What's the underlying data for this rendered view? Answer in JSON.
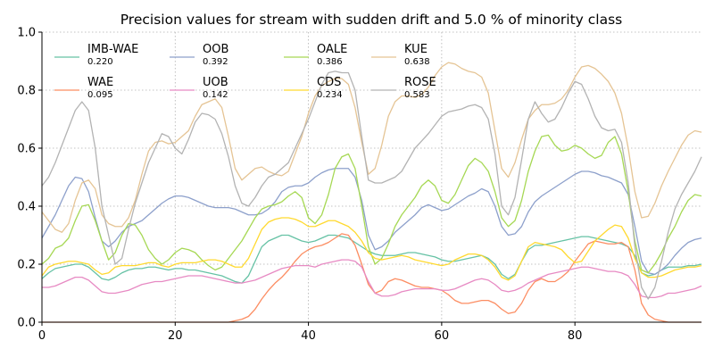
{
  "chart_data": {
    "type": "line",
    "title": "Precision values for stream with sudden drift and 5.0 % of minority class",
    "xlabel": "",
    "ylabel": "",
    "xlim": [
      0,
      99
    ],
    "ylim": [
      0,
      1.0
    ],
    "xticks": [
      "0",
      "20",
      "40",
      "60",
      "80"
    ],
    "yticks": [
      "0.0",
      "0.2",
      "0.4",
      "0.6",
      "0.8",
      "1.0"
    ],
    "grid": true,
    "legend_position": "top-left",
    "x": [
      0,
      1,
      2,
      3,
      4,
      5,
      6,
      7,
      8,
      9,
      10,
      11,
      12,
      13,
      14,
      15,
      16,
      17,
      18,
      19,
      20,
      21,
      22,
      23,
      24,
      25,
      26,
      27,
      28,
      29,
      30,
      31,
      32,
      33,
      34,
      35,
      36,
      37,
      38,
      39,
      40,
      41,
      42,
      43,
      44,
      45,
      46,
      47,
      48,
      49,
      50,
      51,
      52,
      53,
      54,
      55,
      56,
      57,
      58,
      59,
      60,
      61,
      62,
      63,
      64,
      65,
      66,
      67,
      68,
      69,
      70,
      71,
      72,
      73,
      74,
      75,
      76,
      77,
      78,
      79,
      80,
      81,
      82,
      83,
      84,
      85,
      86,
      87,
      88,
      89,
      90,
      91,
      92,
      93,
      94,
      95,
      96,
      97,
      98,
      99
    ],
    "series": [
      {
        "name": "IMB-WAE",
        "score": "0.220",
        "color": "#66c2a5",
        "values": [
          0.15,
          0.17,
          0.185,
          0.19,
          0.195,
          0.2,
          0.2,
          0.19,
          0.17,
          0.15,
          0.145,
          0.155,
          0.17,
          0.18,
          0.185,
          0.185,
          0.19,
          0.19,
          0.185,
          0.18,
          0.185,
          0.185,
          0.18,
          0.18,
          0.175,
          0.17,
          0.165,
          0.16,
          0.15,
          0.14,
          0.135,
          0.16,
          0.21,
          0.26,
          0.28,
          0.29,
          0.3,
          0.3,
          0.29,
          0.28,
          0.275,
          0.28,
          0.29,
          0.3,
          0.3,
          0.295,
          0.29,
          0.275,
          0.26,
          0.245,
          0.235,
          0.23,
          0.23,
          0.23,
          0.235,
          0.24,
          0.24,
          0.235,
          0.23,
          0.225,
          0.215,
          0.21,
          0.21,
          0.215,
          0.22,
          0.225,
          0.23,
          0.22,
          0.2,
          0.165,
          0.15,
          0.165,
          0.21,
          0.25,
          0.265,
          0.265,
          0.27,
          0.275,
          0.28,
          0.285,
          0.29,
          0.295,
          0.295,
          0.29,
          0.285,
          0.28,
          0.275,
          0.27,
          0.26,
          0.23,
          0.17,
          0.16,
          0.165,
          0.18,
          0.19,
          0.19,
          0.19,
          0.195,
          0.195,
          0.2
        ]
      },
      {
        "name": "WAE",
        "score": "0.095",
        "color": "#fc8d62",
        "values": [
          0,
          0,
          0,
          0,
          0,
          0,
          0,
          0,
          0,
          0,
          0,
          0,
          0,
          0,
          0,
          0,
          0,
          0,
          0,
          0,
          0,
          0,
          0,
          0,
          0,
          0,
          0,
          0,
          0,
          0.005,
          0.01,
          0.02,
          0.045,
          0.08,
          0.11,
          0.135,
          0.155,
          0.18,
          0.21,
          0.235,
          0.25,
          0.26,
          0.265,
          0.275,
          0.29,
          0.305,
          0.3,
          0.265,
          0.2,
          0.13,
          0.1,
          0.11,
          0.14,
          0.15,
          0.145,
          0.135,
          0.125,
          0.12,
          0.12,
          0.115,
          0.11,
          0.095,
          0.075,
          0.065,
          0.065,
          0.07,
          0.075,
          0.075,
          0.065,
          0.045,
          0.03,
          0.035,
          0.065,
          0.11,
          0.14,
          0.15,
          0.14,
          0.14,
          0.155,
          0.175,
          0.21,
          0.24,
          0.27,
          0.28,
          0.275,
          0.27,
          0.27,
          0.275,
          0.26,
          0.18,
          0.065,
          0.025,
          0.01,
          0.005,
          0,
          0,
          0,
          0,
          0,
          0
        ]
      },
      {
        "name": "OOB",
        "score": "0.392",
        "color": "#8da0cb",
        "values": [
          0.29,
          0.33,
          0.37,
          0.42,
          0.47,
          0.5,
          0.495,
          0.45,
          0.36,
          0.28,
          0.26,
          0.28,
          0.31,
          0.33,
          0.34,
          0.35,
          0.37,
          0.39,
          0.41,
          0.425,
          0.435,
          0.435,
          0.43,
          0.42,
          0.41,
          0.4,
          0.395,
          0.395,
          0.395,
          0.39,
          0.38,
          0.37,
          0.37,
          0.375,
          0.39,
          0.415,
          0.45,
          0.465,
          0.47,
          0.47,
          0.48,
          0.5,
          0.515,
          0.525,
          0.53,
          0.53,
          0.53,
          0.5,
          0.42,
          0.3,
          0.25,
          0.26,
          0.28,
          0.31,
          0.33,
          0.35,
          0.37,
          0.395,
          0.405,
          0.395,
          0.385,
          0.39,
          0.405,
          0.42,
          0.435,
          0.445,
          0.46,
          0.45,
          0.4,
          0.33,
          0.3,
          0.305,
          0.33,
          0.38,
          0.415,
          0.435,
          0.45,
          0.465,
          0.48,
          0.495,
          0.51,
          0.52,
          0.52,
          0.515,
          0.505,
          0.5,
          0.49,
          0.48,
          0.44,
          0.33,
          0.21,
          0.17,
          0.165,
          0.18,
          0.2,
          0.23,
          0.255,
          0.275,
          0.285,
          0.29
        ]
      },
      {
        "name": "UOB",
        "score": "0.142",
        "color": "#e78ac3",
        "values": [
          0.12,
          0.12,
          0.125,
          0.135,
          0.145,
          0.155,
          0.155,
          0.145,
          0.125,
          0.105,
          0.1,
          0.1,
          0.105,
          0.11,
          0.12,
          0.13,
          0.135,
          0.14,
          0.14,
          0.145,
          0.15,
          0.155,
          0.16,
          0.16,
          0.16,
          0.155,
          0.15,
          0.145,
          0.14,
          0.135,
          0.135,
          0.14,
          0.145,
          0.155,
          0.165,
          0.175,
          0.185,
          0.19,
          0.195,
          0.195,
          0.195,
          0.19,
          0.2,
          0.205,
          0.21,
          0.215,
          0.215,
          0.21,
          0.19,
          0.14,
          0.1,
          0.09,
          0.09,
          0.095,
          0.105,
          0.11,
          0.115,
          0.115,
          0.115,
          0.115,
          0.11,
          0.11,
          0.115,
          0.125,
          0.135,
          0.145,
          0.15,
          0.145,
          0.13,
          0.11,
          0.105,
          0.11,
          0.12,
          0.135,
          0.145,
          0.155,
          0.165,
          0.17,
          0.175,
          0.18,
          0.185,
          0.19,
          0.19,
          0.185,
          0.18,
          0.175,
          0.175,
          0.17,
          0.16,
          0.13,
          0.09,
          0.085,
          0.085,
          0.09,
          0.1,
          0.1,
          0.105,
          0.11,
          0.115,
          0.125
        ]
      },
      {
        "name": "OALE",
        "score": "0.386",
        "color": "#a6d854",
        "values": [
          0.2,
          0.22,
          0.255,
          0.265,
          0.29,
          0.35,
          0.4,
          0.405,
          0.35,
          0.28,
          0.215,
          0.24,
          0.3,
          0.34,
          0.335,
          0.3,
          0.25,
          0.22,
          0.2,
          0.215,
          0.24,
          0.255,
          0.25,
          0.24,
          0.215,
          0.195,
          0.18,
          0.19,
          0.22,
          0.25,
          0.28,
          0.32,
          0.36,
          0.39,
          0.4,
          0.405,
          0.415,
          0.435,
          0.45,
          0.43,
          0.36,
          0.34,
          0.37,
          0.44,
          0.53,
          0.57,
          0.58,
          0.53,
          0.4,
          0.26,
          0.2,
          0.22,
          0.27,
          0.33,
          0.37,
          0.4,
          0.43,
          0.47,
          0.49,
          0.47,
          0.42,
          0.41,
          0.44,
          0.49,
          0.54,
          0.565,
          0.55,
          0.52,
          0.45,
          0.36,
          0.33,
          0.35,
          0.42,
          0.52,
          0.59,
          0.64,
          0.645,
          0.61,
          0.59,
          0.595,
          0.61,
          0.6,
          0.58,
          0.565,
          0.575,
          0.62,
          0.64,
          0.58,
          0.45,
          0.28,
          0.18,
          0.17,
          0.2,
          0.24,
          0.29,
          0.33,
          0.38,
          0.42,
          0.44,
          0.435
        ]
      },
      {
        "name": "CDS",
        "score": "0.234",
        "color": "#ffd92f",
        "values": [
          0.16,
          0.19,
          0.2,
          0.205,
          0.21,
          0.21,
          0.205,
          0.2,
          0.18,
          0.165,
          0.17,
          0.19,
          0.195,
          0.195,
          0.195,
          0.2,
          0.205,
          0.205,
          0.195,
          0.19,
          0.2,
          0.205,
          0.205,
          0.205,
          0.21,
          0.215,
          0.215,
          0.21,
          0.2,
          0.19,
          0.19,
          0.22,
          0.27,
          0.32,
          0.345,
          0.355,
          0.36,
          0.36,
          0.355,
          0.345,
          0.33,
          0.33,
          0.34,
          0.35,
          0.35,
          0.34,
          0.33,
          0.31,
          0.28,
          0.24,
          0.22,
          0.215,
          0.22,
          0.225,
          0.23,
          0.225,
          0.215,
          0.21,
          0.205,
          0.2,
          0.195,
          0.2,
          0.215,
          0.225,
          0.235,
          0.235,
          0.23,
          0.215,
          0.19,
          0.155,
          0.145,
          0.16,
          0.21,
          0.26,
          0.275,
          0.27,
          0.265,
          0.26,
          0.25,
          0.225,
          0.205,
          0.21,
          0.245,
          0.28,
          0.3,
          0.32,
          0.335,
          0.33,
          0.29,
          0.22,
          0.17,
          0.155,
          0.155,
          0.16,
          0.17,
          0.18,
          0.185,
          0.19,
          0.19,
          0.195
        ]
      },
      {
        "name": "KUE",
        "score": "0.638",
        "color": "#e5c494",
        "values": [
          0.38,
          0.35,
          0.32,
          0.31,
          0.34,
          0.42,
          0.48,
          0.49,
          0.46,
          0.37,
          0.34,
          0.33,
          0.33,
          0.36,
          0.42,
          0.51,
          0.59,
          0.62,
          0.625,
          0.615,
          0.62,
          0.64,
          0.66,
          0.71,
          0.75,
          0.76,
          0.77,
          0.74,
          0.64,
          0.53,
          0.49,
          0.51,
          0.53,
          0.535,
          0.52,
          0.51,
          0.505,
          0.52,
          0.58,
          0.64,
          0.72,
          0.78,
          0.815,
          0.83,
          0.84,
          0.84,
          0.82,
          0.74,
          0.62,
          0.51,
          0.53,
          0.61,
          0.71,
          0.76,
          0.78,
          0.78,
          0.775,
          0.785,
          0.81,
          0.85,
          0.88,
          0.895,
          0.89,
          0.875,
          0.865,
          0.86,
          0.845,
          0.79,
          0.66,
          0.53,
          0.5,
          0.55,
          0.63,
          0.7,
          0.73,
          0.75,
          0.75,
          0.755,
          0.77,
          0.8,
          0.845,
          0.88,
          0.885,
          0.875,
          0.855,
          0.83,
          0.79,
          0.72,
          0.6,
          0.45,
          0.36,
          0.365,
          0.41,
          0.47,
          0.52,
          0.565,
          0.61,
          0.645,
          0.66,
          0.655
        ]
      },
      {
        "name": "ROSE",
        "score": "0.583",
        "color": "#b3b3b3",
        "values": [
          0.47,
          0.5,
          0.55,
          0.61,
          0.67,
          0.73,
          0.76,
          0.73,
          0.6,
          0.4,
          0.3,
          0.2,
          0.22,
          0.32,
          0.41,
          0.48,
          0.55,
          0.6,
          0.65,
          0.64,
          0.6,
          0.58,
          0.63,
          0.69,
          0.72,
          0.715,
          0.7,
          0.65,
          0.57,
          0.47,
          0.41,
          0.4,
          0.43,
          0.47,
          0.5,
          0.51,
          0.53,
          0.55,
          0.6,
          0.65,
          0.7,
          0.76,
          0.82,
          0.86,
          0.865,
          0.86,
          0.86,
          0.8,
          0.64,
          0.49,
          0.48,
          0.48,
          0.49,
          0.5,
          0.52,
          0.56,
          0.6,
          0.625,
          0.65,
          0.68,
          0.71,
          0.725,
          0.73,
          0.735,
          0.745,
          0.75,
          0.74,
          0.7,
          0.58,
          0.4,
          0.37,
          0.43,
          0.56,
          0.7,
          0.76,
          0.72,
          0.69,
          0.7,
          0.74,
          0.79,
          0.83,
          0.82,
          0.77,
          0.71,
          0.67,
          0.66,
          0.665,
          0.62,
          0.48,
          0.26,
          0.12,
          0.08,
          0.12,
          0.21,
          0.31,
          0.39,
          0.44,
          0.48,
          0.52,
          0.57
        ]
      }
    ]
  }
}
